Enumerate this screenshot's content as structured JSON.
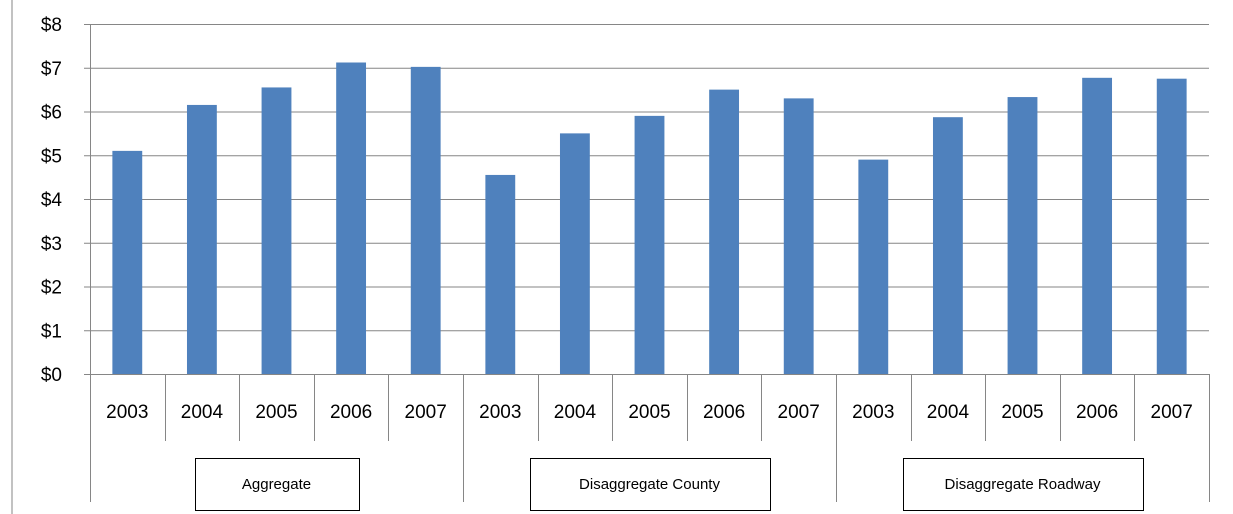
{
  "chart_data": {
    "type": "bar",
    "title": "",
    "xlabel": "",
    "ylabel": "",
    "ylim": [
      0,
      8
    ],
    "y_ticks": [
      "$0",
      "$1",
      "$2",
      "$3",
      "$4",
      "$5",
      "$6",
      "$7",
      "$8"
    ],
    "grid": true,
    "legend": "none",
    "groups": [
      {
        "name": "Aggregate",
        "categories": [
          "2003",
          "2004",
          "2005",
          "2006",
          "2007"
        ],
        "values": [
          5.1,
          6.15,
          6.55,
          7.12,
          7.02
        ]
      },
      {
        "name": "Disaggregate County",
        "categories": [
          "2003",
          "2004",
          "2005",
          "2006",
          "2007"
        ],
        "values": [
          4.55,
          5.5,
          5.9,
          6.5,
          6.3
        ]
      },
      {
        "name": "Disaggregate Roadway",
        "categories": [
          "2003",
          "2004",
          "2005",
          "2006",
          "2007"
        ],
        "values": [
          4.9,
          5.87,
          6.33,
          6.77,
          6.75
        ]
      }
    ]
  },
  "colors": {
    "bar": "#4f81bd",
    "grid": "#868686",
    "axis": "#868686"
  }
}
